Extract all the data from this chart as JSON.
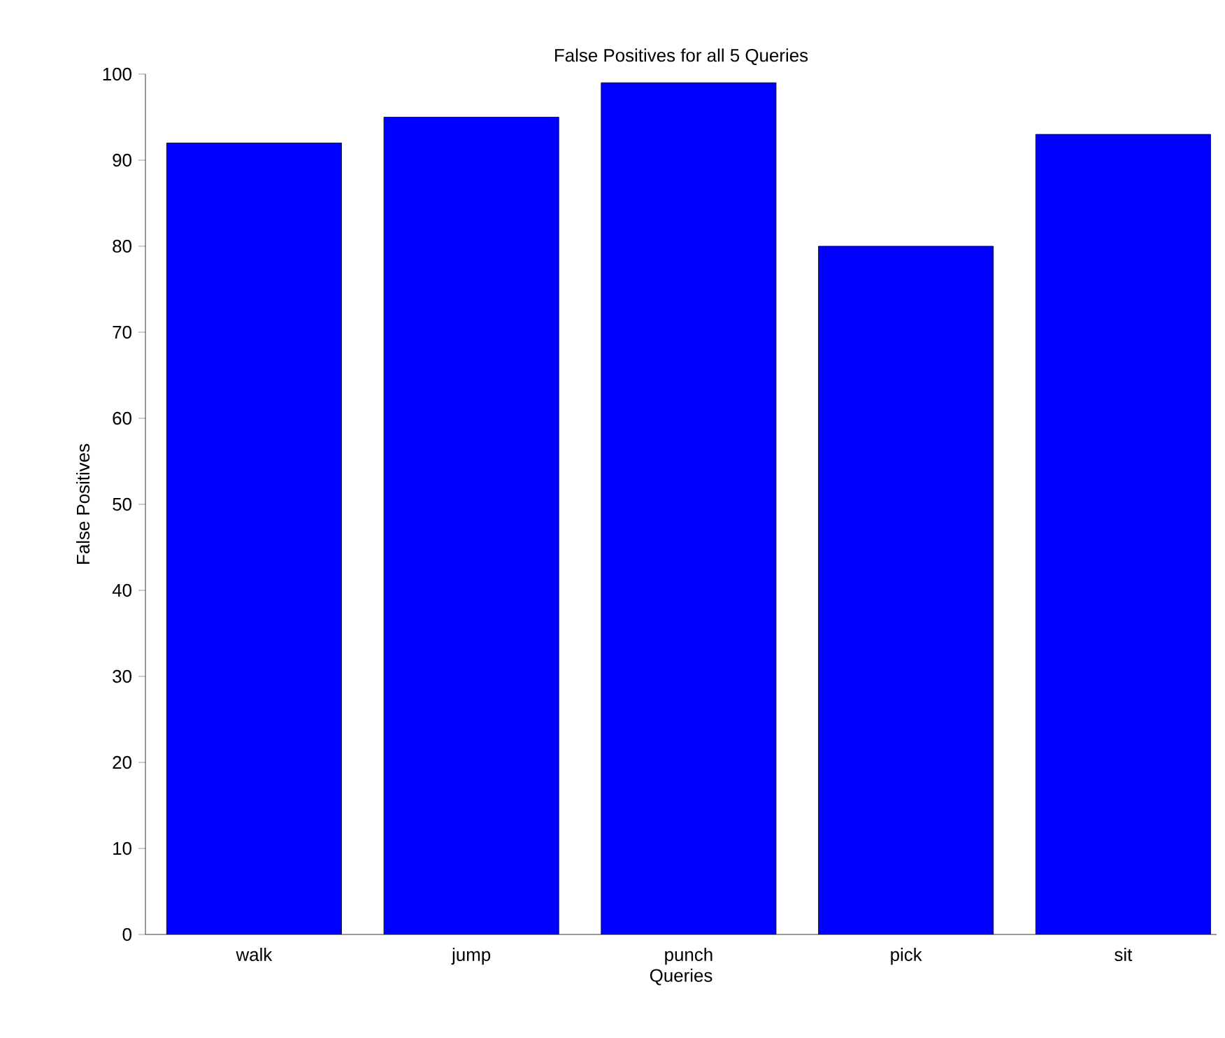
{
  "chart_data": {
    "type": "bar",
    "title": "False Positives for all 5 Queries",
    "xlabel": "Queries",
    "ylabel": "False Positives",
    "categories": [
      "walk",
      "jump",
      "punch",
      "pick",
      "sit"
    ],
    "values": [
      92,
      95,
      99,
      80,
      93
    ],
    "color": "#0000ff",
    "ylim": [
      0,
      100
    ],
    "yticks": [
      0,
      10,
      20,
      30,
      40,
      50,
      60,
      70,
      80,
      90,
      100
    ],
    "grid": false
  }
}
